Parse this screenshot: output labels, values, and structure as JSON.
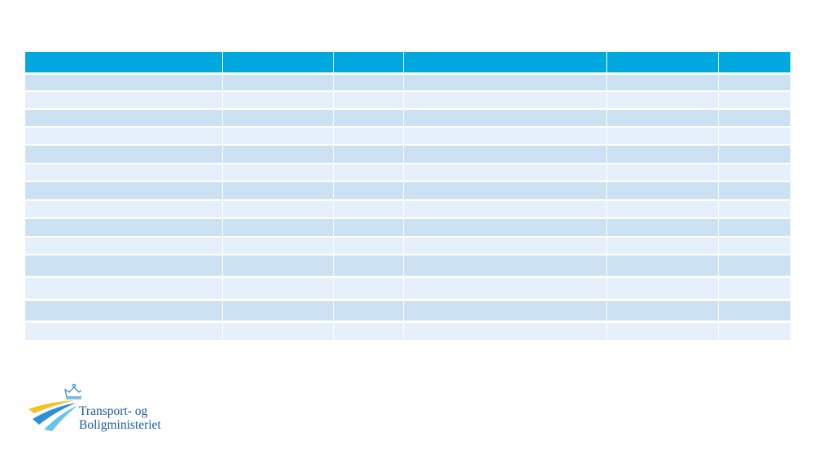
{
  "logo": {
    "lines": [
      "Transport- og",
      "Boligministeriet"
    ]
  }
}
